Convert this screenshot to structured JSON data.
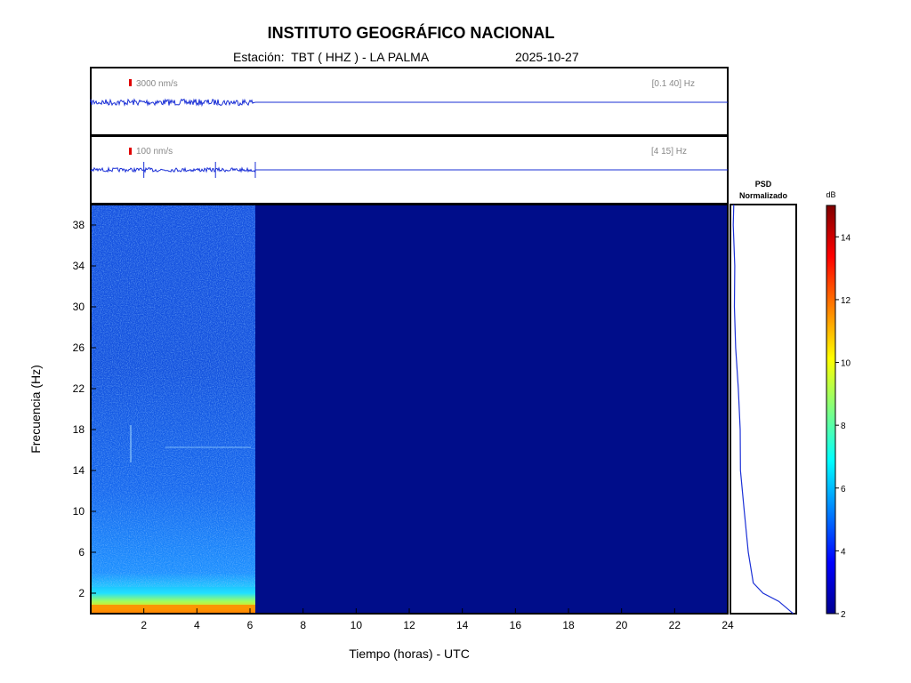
{
  "header": {
    "title": "INSTITUTO GEOGRÁFICO NACIONAL",
    "station_line": "Estación:  TBT ( HHZ ) - LA PALMA",
    "date": "2025-10-27"
  },
  "chart_data": [
    {
      "type": "line",
      "panel": "seismogram-broadband",
      "scale_label": "3000 nm/s",
      "filter_label": "[0.1 40] Hz",
      "data_end_hour": 6.2,
      "xlim": [
        0,
        24
      ]
    },
    {
      "type": "line",
      "panel": "seismogram-filtered",
      "scale_label": "100 nm/s",
      "filter_label": "[4 15] Hz",
      "data_end_hour": 6.2,
      "event_hours": [
        2.0,
        4.7,
        6.2
      ],
      "xlim": [
        0,
        24
      ]
    },
    {
      "type": "heatmap",
      "panel": "spectrogram",
      "xlabel": "Tiempo (horas) - UTC",
      "ylabel": "Frecuencia  (Hz)",
      "xlim": [
        0,
        24
      ],
      "ylim": [
        0,
        40
      ],
      "x_ticks": [
        2,
        4,
        6,
        8,
        10,
        12,
        14,
        16,
        18,
        20,
        22,
        24
      ],
      "y_ticks": [
        2,
        6,
        10,
        14,
        18,
        22,
        26,
        30,
        34,
        38
      ],
      "data_end_hour": 6.2,
      "colorscale": "jet"
    },
    {
      "type": "line",
      "panel": "psd",
      "title": "PSD\nNormalizado",
      "ylim": [
        0,
        40
      ],
      "points": [
        [
          0.03,
          40
        ],
        [
          0.04,
          38
        ],
        [
          0.05,
          34
        ],
        [
          0.06,
          30
        ],
        [
          0.08,
          26
        ],
        [
          0.1,
          22
        ],
        [
          0.13,
          18
        ],
        [
          0.16,
          14
        ],
        [
          0.22,
          10
        ],
        [
          0.28,
          6
        ],
        [
          0.34,
          3
        ],
        [
          0.5,
          2
        ],
        [
          0.75,
          1.2
        ],
        [
          1.0,
          0
        ]
      ]
    },
    {
      "type": "colorbar",
      "label": "dB",
      "range": [
        2,
        15
      ],
      "ticks": [
        2,
        4,
        6,
        8,
        10,
        12,
        14
      ]
    }
  ]
}
